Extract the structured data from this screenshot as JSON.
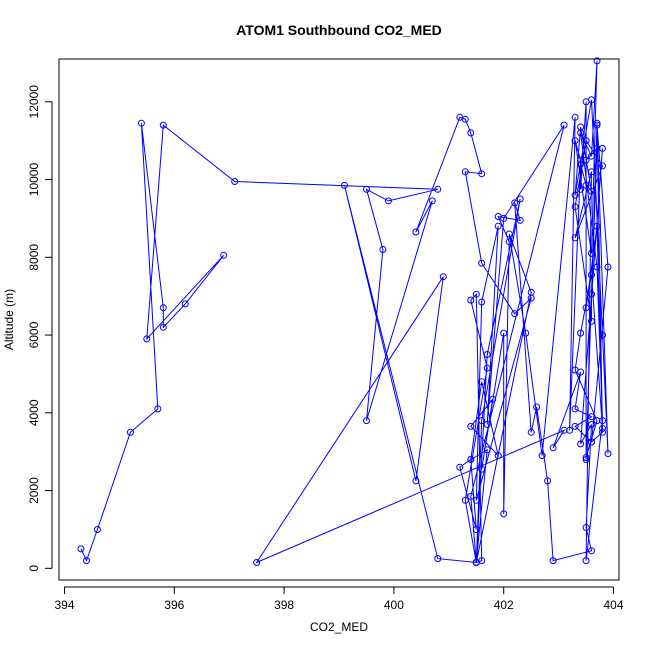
{
  "chart_data": {
    "type": "line",
    "title": "ATOM1 Southbound CO2_MED",
    "xlabel": "CO2_MED",
    "ylabel": "Altitude (m)",
    "xlim": [
      393.9,
      404.1
    ],
    "ylim": [
      -300,
      13100
    ],
    "xticks": [
      394,
      396,
      398,
      400,
      402,
      404
    ],
    "yticks": [
      0,
      2000,
      4000,
      6000,
      8000,
      10000,
      12000
    ],
    "grid": false,
    "legend": "none",
    "series_color": "#0000ff",
    "markers": "open-circle",
    "x": [
      394.3,
      394.4,
      394.6,
      395.2,
      395.7,
      395.4,
      395.8,
      395.8,
      396.2,
      396.9,
      395.5,
      395.8,
      397.1,
      400.8,
      399.9,
      399.5,
      399.8,
      399.5,
      400.7,
      400.4,
      401.2,
      401.3,
      401.4,
      401.6,
      401.3,
      401.6,
      402.2,
      402.5,
      401.5,
      401.6,
      401.9,
      401.7,
      402.0,
      403.1,
      401.4,
      401.5,
      401.5,
      401.6,
      402.3,
      401.7,
      401.5,
      402.5,
      402.1,
      402.4,
      402.7,
      403.3,
      403.2,
      403.4,
      403.5,
      403.6,
      403.4,
      403.3,
      403.6,
      403.8,
      403.9,
      403.7,
      403.9,
      403.6,
      403.8,
      403.7,
      403.5,
      403.5,
      403.7,
      403.6,
      403.5,
      403.7,
      403.3,
      403.4,
      403.6,
      403.8,
      403.7,
      403.5,
      403.5,
      403.4,
      403.4,
      403.3,
      403.6,
      403.7,
      403.6,
      403.4,
      403.7,
      403.8,
      403.5,
      403.6,
      403.3,
      403.8,
      403.5,
      403.3,
      403.6,
      403.6,
      403.8,
      403.4,
      403.6,
      403.5,
      403.6,
      402.9,
      402.8,
      402.6,
      402.5,
      402.2,
      402.3,
      401.9,
      402.1,
      402.0,
      402.0,
      401.6,
      401.8,
      401.4,
      401.9,
      401.6,
      401.4,
      401.5,
      401.2,
      401.4,
      401.7,
      401.5,
      401.3,
      401.7,
      401.4,
      401.5,
      401.6,
      401.5,
      400.8,
      399.1,
      400.4,
      400.9,
      397.5,
      403.1,
      402.9,
      403.4,
      403.3,
      403.6,
      403.3,
      403.6
    ],
    "y": [
      500,
      200,
      1000,
      3500,
      4100,
      11450,
      6700,
      6200,
      6800,
      8050,
      5900,
      11400,
      9950,
      9750,
      9450,
      9750,
      8200,
      3800,
      9450,
      8650,
      11600,
      11550,
      11200,
      10150,
      10200,
      7850,
      6550,
      6950,
      1750,
      6850,
      8800,
      3700,
      9000,
      11400,
      1850,
      150,
      150,
      3800,
      9500,
      5500,
      150,
      7100,
      8600,
      6050,
      2900,
      11600,
      3550,
      10400,
      9850,
      9700,
      11350,
      9600,
      12050,
      6000,
      2950,
      11400,
      7750,
      3250,
      3500,
      11450,
      2800,
      10500,
      10800,
      7050,
      2850,
      3800,
      5100,
      6050,
      7550,
      3600,
      8800,
      6700,
      12000,
      9750,
      10500,
      11000,
      8100,
      13050,
      10600,
      11200,
      7750,
      3800,
      200,
      10200,
      8500,
      10350,
      11000,
      9300,
      6350,
      7050,
      10800,
      3200,
      3700,
      1050,
      450,
      200,
      2250,
      4150,
      3500,
      9400,
      8950,
      9050,
      8400,
      1400,
      6050,
      2550,
      4350,
      3650,
      2900,
      4800,
      2800,
      1000,
      2600,
      2800,
      3050,
      150,
      1750,
      5150,
      6900,
      7050,
      200,
      150,
      250,
      9850,
      2250,
      7500,
      150,
      3550,
      3100,
      5050,
      4100,
      3900,
      3650,
      3250
    ]
  }
}
